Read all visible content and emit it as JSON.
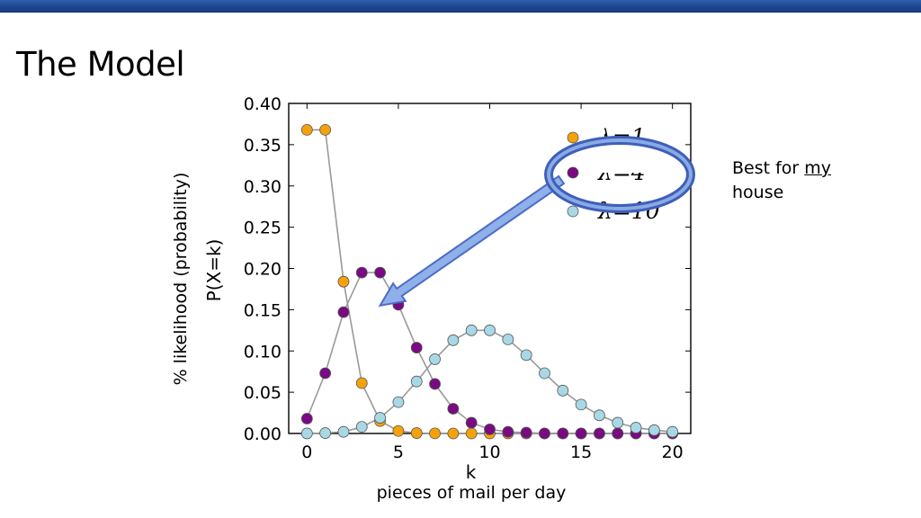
{
  "slide": {
    "title": "The Model",
    "y_caption": "% likelihood (probability)",
    "x_caption": "pieces of mail per day",
    "note_before": "Best for ",
    "note_underlined": "my",
    "note_after": "house"
  },
  "colors": {
    "header_bar": "#1d4690",
    "orange": "#f5a20a",
    "purple": "#7a0a82",
    "light_blue": "#a8d8e6",
    "connector_line": "#999999",
    "callout": "#4b6cc6"
  },
  "chart_data": {
    "type": "line",
    "xlabel": "k",
    "ylabel": "P(X=k)",
    "xlim": [
      -1,
      21
    ],
    "ylim": [
      0,
      0.4
    ],
    "x_ticks": [
      "0",
      "5",
      "10",
      "15",
      "20"
    ],
    "y_ticks": [
      "0.00",
      "0.05",
      "0.10",
      "0.15",
      "0.20",
      "0.25",
      "0.30",
      "0.35",
      "0.40"
    ],
    "grid": false,
    "legend": "top-right",
    "x": [
      0,
      1,
      2,
      3,
      4,
      5,
      6,
      7,
      8,
      9,
      10,
      11,
      12,
      13,
      14,
      15,
      16,
      17,
      18,
      19,
      20
    ],
    "series": [
      {
        "name": "λ=1",
        "color": "#f5a20a",
        "values": [
          0.368,
          0.368,
          0.184,
          0.061,
          0.015,
          0.003,
          0.0005,
          0.0001,
          0,
          0,
          0,
          0,
          0,
          0,
          0,
          0,
          0,
          0,
          0,
          0,
          0
        ]
      },
      {
        "name": "λ=4",
        "color": "#7a0a82",
        "values": [
          0.018,
          0.073,
          0.147,
          0.195,
          0.195,
          0.156,
          0.104,
          0.06,
          0.03,
          0.013,
          0.005,
          0.002,
          0.001,
          0,
          0,
          0,
          0,
          0,
          0,
          0,
          0
        ]
      },
      {
        "name": "λ=10",
        "color": "#a8d8e6",
        "values": [
          5e-05,
          0.0005,
          0.002,
          0.008,
          0.019,
          0.038,
          0.063,
          0.09,
          0.113,
          0.125,
          0.125,
          0.114,
          0.095,
          0.073,
          0.052,
          0.035,
          0.022,
          0.013,
          0.007,
          0.004,
          0.002
        ]
      }
    ],
    "callout": {
      "highlighted_series": "λ=4",
      "points_to_x": 4
    }
  }
}
